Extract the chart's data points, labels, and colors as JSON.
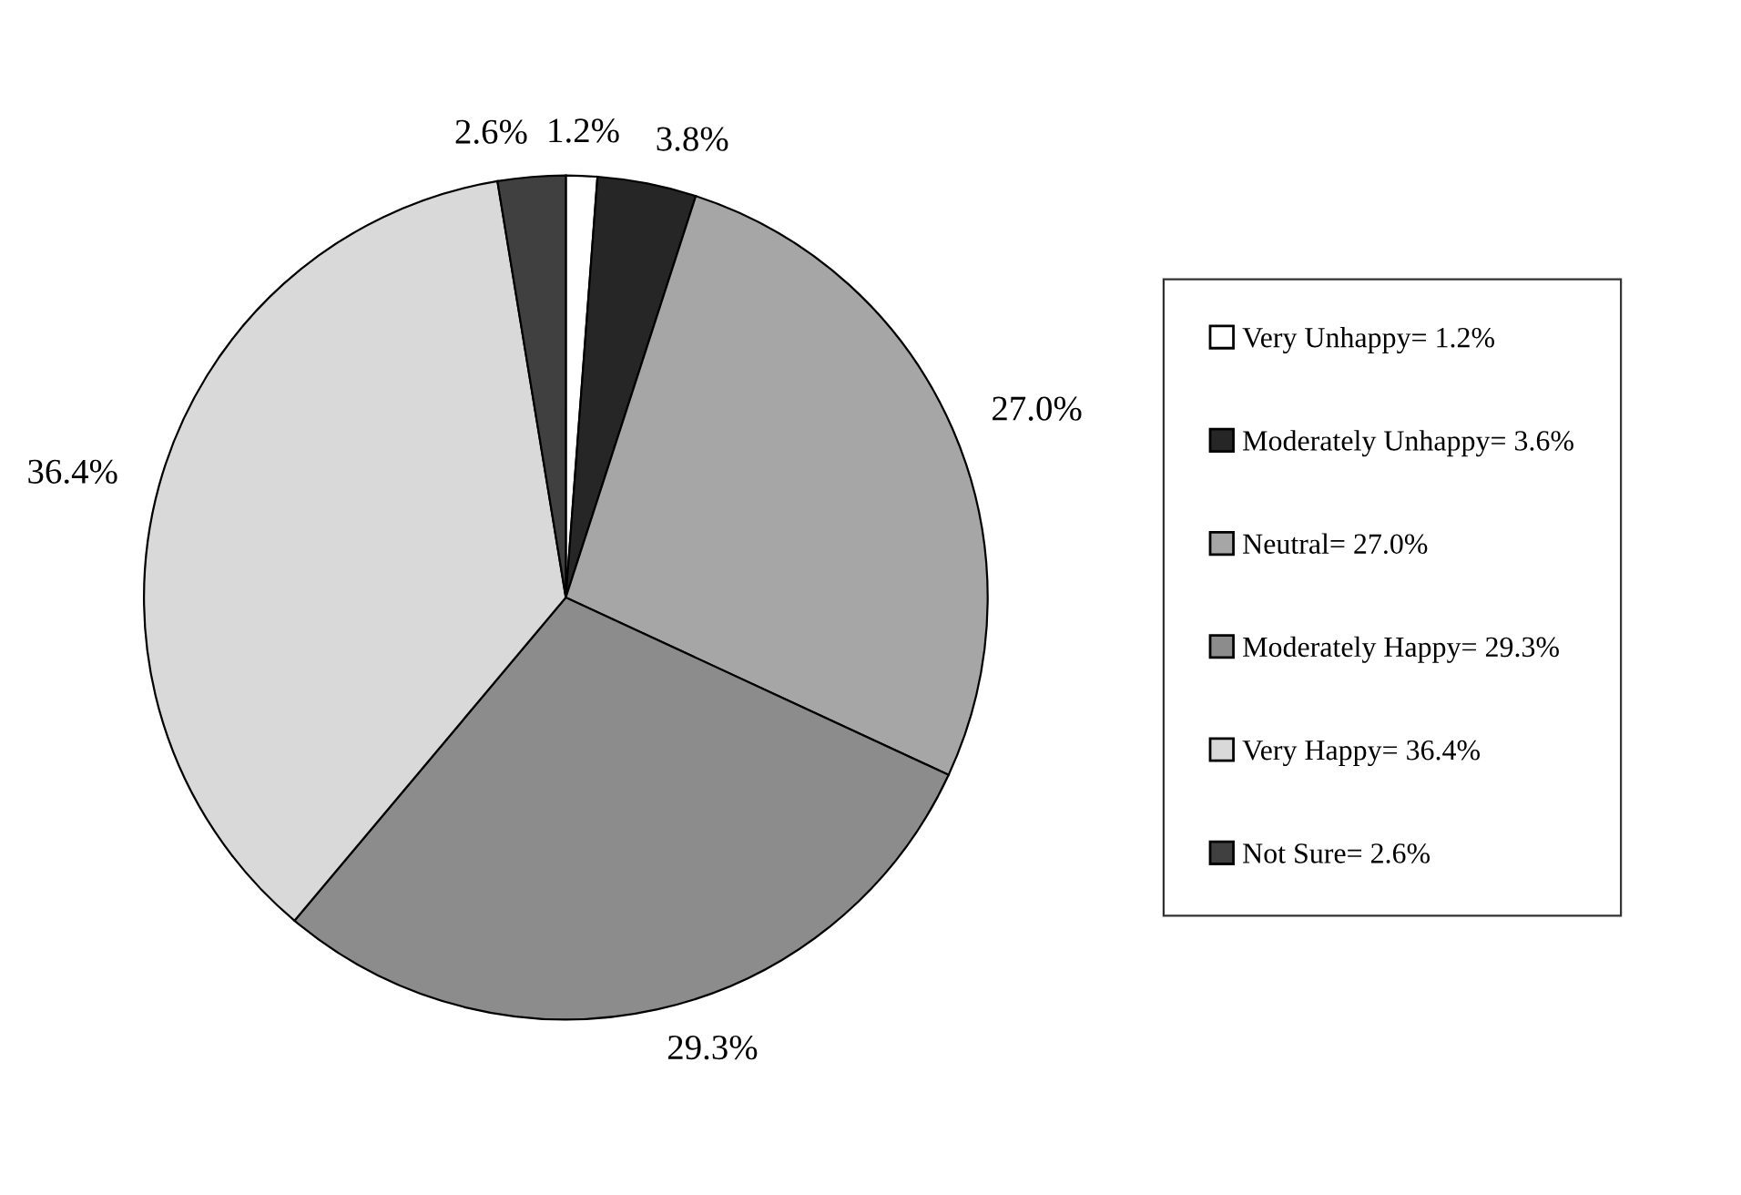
{
  "chart_data": {
    "type": "pie",
    "categories": [
      "Very Unhappy= 1.2%",
      "Moderately Unhappy= 3.6%",
      "Neutral= 27.0%",
      "Moderately Happy= 29.3%",
      "Very Happy= 36.4%",
      "Not Sure= 2.6%"
    ],
    "values": [
      1.2,
      3.8,
      27.0,
      29.3,
      36.4,
      2.6
    ],
    "value_labels": [
      "1.2%",
      "3.8%",
      "27.0%",
      "29.3%",
      "36.4%",
      "2.6%"
    ],
    "colors": [
      "#ffffff",
      "#262626",
      "#a6a6a6",
      "#8c8c8c",
      "#d9d9d9",
      "#404040"
    ],
    "legend": "right"
  }
}
